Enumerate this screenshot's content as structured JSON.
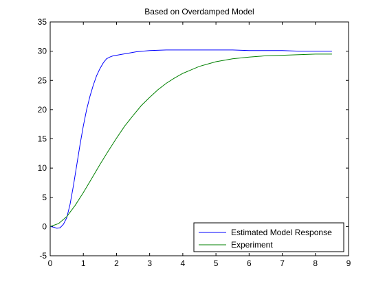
{
  "chart_data": {
    "type": "line",
    "title": "Based on Overdamped Model",
    "xlabel": "",
    "ylabel": "",
    "xlim": [
      0,
      9
    ],
    "ylim": [
      -5,
      35
    ],
    "xticks": [
      0,
      1,
      2,
      3,
      4,
      5,
      6,
      7,
      8,
      9
    ],
    "yticks": [
      -5,
      0,
      5,
      10,
      15,
      20,
      25,
      30,
      35
    ],
    "grid": false,
    "legend_position": "bottom-right",
    "series": [
      {
        "name": "Estimated Model Response",
        "color": "#0000ff",
        "points": [
          [
            0.0,
            0.0
          ],
          [
            0.1,
            -0.1
          ],
          [
            0.2,
            -0.3
          ],
          [
            0.3,
            -0.2
          ],
          [
            0.4,
            0.4
          ],
          [
            0.5,
            1.5
          ],
          [
            0.6,
            3.8
          ],
          [
            0.7,
            7.0
          ],
          [
            0.8,
            10.5
          ],
          [
            0.9,
            14.0
          ],
          [
            1.0,
            17.2
          ],
          [
            1.1,
            20.0
          ],
          [
            1.2,
            22.3
          ],
          [
            1.3,
            24.2
          ],
          [
            1.4,
            25.8
          ],
          [
            1.5,
            27.0
          ],
          [
            1.6,
            28.0
          ],
          [
            1.7,
            28.7
          ],
          [
            1.8,
            29.0
          ],
          [
            1.9,
            29.2
          ],
          [
            2.0,
            29.3
          ],
          [
            2.2,
            29.5
          ],
          [
            2.4,
            29.7
          ],
          [
            2.6,
            29.9
          ],
          [
            2.8,
            30.0
          ],
          [
            3.0,
            30.1
          ],
          [
            3.5,
            30.2
          ],
          [
            4.0,
            30.2
          ],
          [
            4.5,
            30.2
          ],
          [
            5.0,
            30.2
          ],
          [
            5.5,
            30.2
          ],
          [
            6.0,
            30.1
          ],
          [
            6.5,
            30.1
          ],
          [
            7.0,
            30.1
          ],
          [
            7.5,
            30.0
          ],
          [
            8.0,
            30.0
          ],
          [
            8.5,
            30.0
          ]
        ]
      },
      {
        "name": "Experiment",
        "color": "#008000",
        "points": [
          [
            0.0,
            0.0
          ],
          [
            0.25,
            0.5
          ],
          [
            0.5,
            1.7
          ],
          [
            0.75,
            3.6
          ],
          [
            1.0,
            5.8
          ],
          [
            1.25,
            8.2
          ],
          [
            1.5,
            10.6
          ],
          [
            1.75,
            12.9
          ],
          [
            2.0,
            15.1
          ],
          [
            2.25,
            17.2
          ],
          [
            2.5,
            19.0
          ],
          [
            2.75,
            20.7
          ],
          [
            3.0,
            22.1
          ],
          [
            3.25,
            23.4
          ],
          [
            3.5,
            24.5
          ],
          [
            3.75,
            25.4
          ],
          [
            4.0,
            26.2
          ],
          [
            4.25,
            26.8
          ],
          [
            4.5,
            27.4
          ],
          [
            4.75,
            27.8
          ],
          [
            5.0,
            28.2
          ],
          [
            5.5,
            28.7
          ],
          [
            6.0,
            29.0
          ],
          [
            6.5,
            29.2
          ],
          [
            7.0,
            29.3
          ],
          [
            7.5,
            29.4
          ],
          [
            8.0,
            29.5
          ],
          [
            8.5,
            29.5
          ]
        ]
      }
    ]
  }
}
